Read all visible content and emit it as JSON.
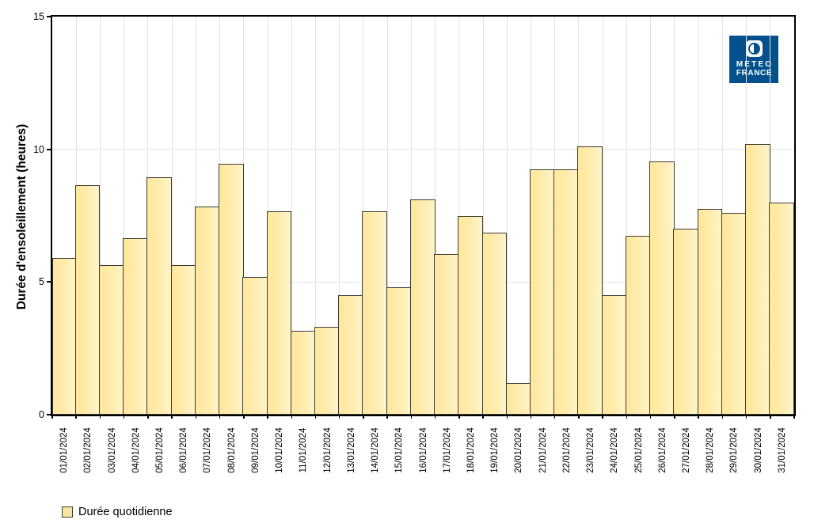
{
  "chart_data": {
    "type": "bar",
    "ylabel": "Durée d'ensoleillement (heures)",
    "xlabel": "",
    "ylim": [
      0,
      15
    ],
    "yticks": [
      0,
      5,
      10,
      15
    ],
    "grid": true,
    "legend_position": "bottom-left",
    "categories": [
      "01/01/2024",
      "02/01/2024",
      "03/01/2024",
      "04/01/2024",
      "05/01/2024",
      "06/01/2024",
      "07/01/2024",
      "08/01/2024",
      "09/01/2024",
      "10/01/2024",
      "11/01/2024",
      "12/01/2024",
      "13/01/2024",
      "14/01/2024",
      "15/01/2024",
      "16/01/2024",
      "17/01/2024",
      "18/01/2024",
      "19/01/2024",
      "20/01/2024",
      "21/01/2024",
      "22/01/2024",
      "23/01/2024",
      "24/01/2024",
      "25/01/2024",
      "26/01/2024",
      "27/01/2024",
      "28/01/2024",
      "29/01/2024",
      "30/01/2024",
      "31/01/2024"
    ],
    "series": [
      {
        "name": "Durée quotidienne",
        "values": [
          5.9,
          8.65,
          5.65,
          6.65,
          8.95,
          5.65,
          7.85,
          9.45,
          5.2,
          7.65,
          3.15,
          3.3,
          4.5,
          7.65,
          4.8,
          8.1,
          6.05,
          7.5,
          6.85,
          1.2,
          9.25,
          9.25,
          10.1,
          4.5,
          6.75,
          9.55,
          7.0,
          7.75,
          7.6,
          10.2,
          8.0
        ]
      }
    ]
  },
  "legend": {
    "label": "Durée quotidienne"
  },
  "logo": {
    "line1": "METEO",
    "line2": "FRANCE"
  },
  "colors": {
    "bar_fill_left": "#ffe69a",
    "bar_fill_right": "#fff4ca",
    "bar_border": "#3b3b33",
    "gridline": "#e2e2e2",
    "frame": "#000000",
    "logo_blue": "#02518d"
  }
}
